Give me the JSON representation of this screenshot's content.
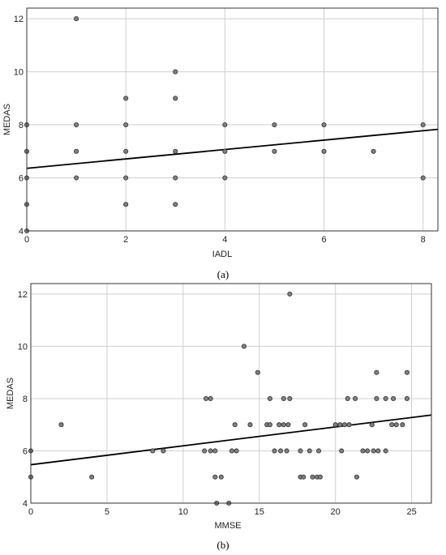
{
  "colors": {
    "point_fill": "#808080",
    "point_stroke": "#3a3a3a",
    "grid": "#cfcfcf",
    "frame": "#333333",
    "fit_line": "#000000"
  },
  "chart_data": [
    {
      "type": "scatter",
      "panel_label": "(a)",
      "xlabel": "IADL",
      "ylabel": "MEDAS",
      "xlim": [
        0,
        8.3
      ],
      "ylim": [
        4,
        12.4
      ],
      "xticks": [
        0,
        2,
        4,
        6,
        8
      ],
      "yticks": [
        4,
        6,
        8,
        10,
        12
      ],
      "grid": true,
      "points": [
        {
          "x": 0,
          "y": 4
        },
        {
          "x": 0,
          "y": 5
        },
        {
          "x": 0,
          "y": 6
        },
        {
          "x": 0,
          "y": 7
        },
        {
          "x": 0,
          "y": 8
        },
        {
          "x": 1,
          "y": 6
        },
        {
          "x": 1,
          "y": 7
        },
        {
          "x": 1,
          "y": 8
        },
        {
          "x": 1,
          "y": 12
        },
        {
          "x": 2,
          "y": 5
        },
        {
          "x": 2,
          "y": 6
        },
        {
          "x": 2,
          "y": 7
        },
        {
          "x": 2,
          "y": 8
        },
        {
          "x": 2,
          "y": 9
        },
        {
          "x": 3,
          "y": 5
        },
        {
          "x": 3,
          "y": 6
        },
        {
          "x": 3,
          "y": 7
        },
        {
          "x": 3,
          "y": 9
        },
        {
          "x": 3,
          "y": 10
        },
        {
          "x": 4,
          "y": 6
        },
        {
          "x": 4,
          "y": 7
        },
        {
          "x": 4,
          "y": 8
        },
        {
          "x": 5,
          "y": 7
        },
        {
          "x": 5,
          "y": 8
        },
        {
          "x": 6,
          "y": 7
        },
        {
          "x": 6,
          "y": 8
        },
        {
          "x": 7,
          "y": 7
        },
        {
          "x": 8,
          "y": 6
        },
        {
          "x": 8,
          "y": 8
        }
      ],
      "fit_line": {
        "x": [
          0,
          8.3
        ],
        "y": [
          6.36,
          7.83
        ]
      }
    },
    {
      "type": "scatter",
      "panel_label": "(b)",
      "xlabel": "MMSE",
      "ylabel": "MEDAS",
      "xlim": [
        0,
        26.3
      ],
      "ylim": [
        4,
        12.4
      ],
      "xticks": [
        0,
        5,
        10,
        15,
        20,
        25
      ],
      "yticks": [
        4,
        6,
        8,
        10,
        12
      ],
      "grid": true,
      "points": [
        {
          "x": 0,
          "y": 5
        },
        {
          "x": 0,
          "y": 6
        },
        {
          "x": 2,
          "y": 7
        },
        {
          "x": 4,
          "y": 5
        },
        {
          "x": 8,
          "y": 6
        },
        {
          "x": 8.7,
          "y": 6
        },
        {
          "x": 11.4,
          "y": 6
        },
        {
          "x": 11.5,
          "y": 8
        },
        {
          "x": 11.8,
          "y": 8
        },
        {
          "x": 11.8,
          "y": 6
        },
        {
          "x": 12.1,
          "y": 5
        },
        {
          "x": 12.1,
          "y": 6
        },
        {
          "x": 12.2,
          "y": 4
        },
        {
          "x": 12.5,
          "y": 5
        },
        {
          "x": 13.0,
          "y": 4
        },
        {
          "x": 13.2,
          "y": 6
        },
        {
          "x": 13.4,
          "y": 7
        },
        {
          "x": 13.5,
          "y": 6
        },
        {
          "x": 14.0,
          "y": 10
        },
        {
          "x": 14.4,
          "y": 7
        },
        {
          "x": 14.9,
          "y": 9
        },
        {
          "x": 15.5,
          "y": 7
        },
        {
          "x": 15.7,
          "y": 7
        },
        {
          "x": 15.7,
          "y": 8
        },
        {
          "x": 16.0,
          "y": 6
        },
        {
          "x": 16.3,
          "y": 7
        },
        {
          "x": 16.4,
          "y": 6
        },
        {
          "x": 16.6,
          "y": 7
        },
        {
          "x": 16.6,
          "y": 8
        },
        {
          "x": 16.8,
          "y": 6
        },
        {
          "x": 16.9,
          "y": 7
        },
        {
          "x": 17.0,
          "y": 12
        },
        {
          "x": 17.0,
          "y": 8
        },
        {
          "x": 17.7,
          "y": 6
        },
        {
          "x": 17.7,
          "y": 5
        },
        {
          "x": 17.9,
          "y": 5
        },
        {
          "x": 18.0,
          "y": 7
        },
        {
          "x": 18.3,
          "y": 6
        },
        {
          "x": 18.5,
          "y": 5
        },
        {
          "x": 18.8,
          "y": 5
        },
        {
          "x": 18.9,
          "y": 6
        },
        {
          "x": 19.0,
          "y": 5
        },
        {
          "x": 20.0,
          "y": 7
        },
        {
          "x": 20.3,
          "y": 7
        },
        {
          "x": 20.4,
          "y": 6
        },
        {
          "x": 20.6,
          "y": 7
        },
        {
          "x": 20.8,
          "y": 8
        },
        {
          "x": 20.9,
          "y": 7
        },
        {
          "x": 21.3,
          "y": 8
        },
        {
          "x": 21.4,
          "y": 5
        },
        {
          "x": 21.8,
          "y": 6
        },
        {
          "x": 22.1,
          "y": 6
        },
        {
          "x": 22.4,
          "y": 7
        },
        {
          "x": 22.5,
          "y": 6
        },
        {
          "x": 22.7,
          "y": 9
        },
        {
          "x": 22.7,
          "y": 8
        },
        {
          "x": 22.8,
          "y": 6
        },
        {
          "x": 23.3,
          "y": 8
        },
        {
          "x": 23.3,
          "y": 6
        },
        {
          "x": 23.7,
          "y": 7
        },
        {
          "x": 23.8,
          "y": 8
        },
        {
          "x": 24.0,
          "y": 7
        },
        {
          "x": 24.4,
          "y": 7
        },
        {
          "x": 24.7,
          "y": 9
        },
        {
          "x": 24.7,
          "y": 8
        }
      ],
      "fit_line": {
        "x": [
          0,
          26.3
        ],
        "y": [
          5.47,
          7.37
        ]
      }
    }
  ]
}
